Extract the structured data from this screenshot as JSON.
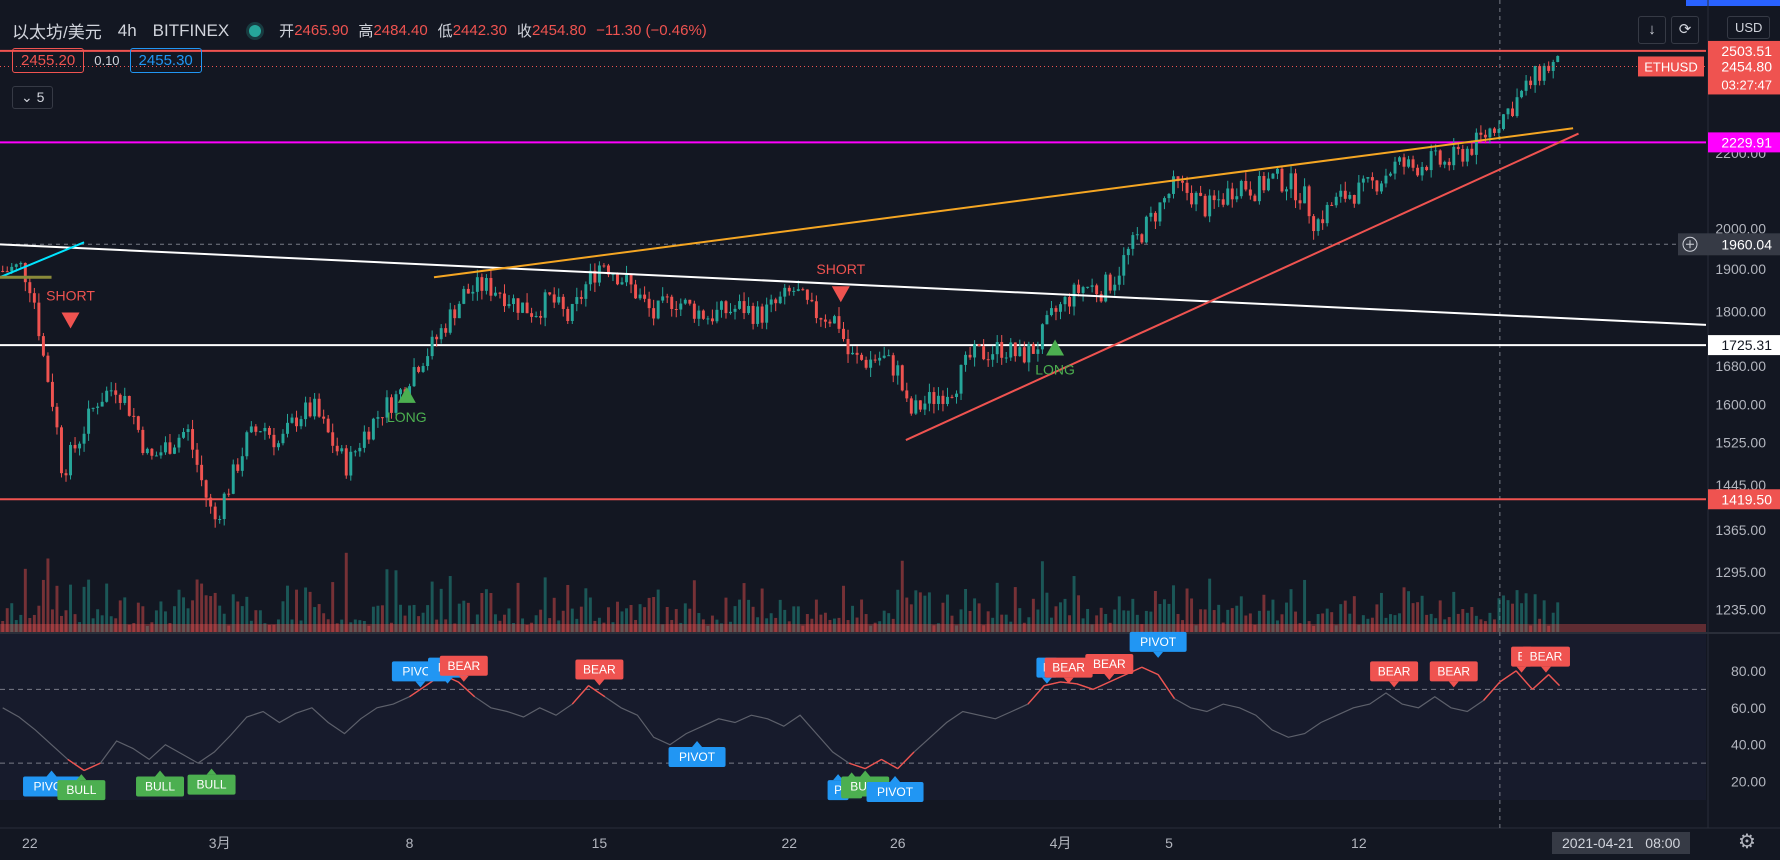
{
  "header": {
    "symbol": "以太坊/美元",
    "timeframe": "4h",
    "exchange": "BITFINEX",
    "open_label": "开",
    "open": "2465.90",
    "high_label": "高",
    "high": "2484.40",
    "low_label": "低",
    "low": "2442.30",
    "close_label": "收",
    "close": "2454.80",
    "change": "−11.30 (−0.46%)",
    "bid": "2455.20",
    "spread": "0.10",
    "ask": "2455.30",
    "indicators_collapsed": "5"
  },
  "toolbar": {
    "currency": "USD",
    "download_icon": "download-icon",
    "fullscreen_icon": "fullscreen-icon",
    "settings_icon": "gear-icon"
  },
  "crosshair": {
    "date": "2021-04-21",
    "time": "08:00",
    "price": "1960.04"
  },
  "colors": {
    "bg": "#131722",
    "up": "#26a69a",
    "down": "#ef5350",
    "magenta": "#ff00ff",
    "orange": "#f5a623",
    "blue": "#2196f3",
    "bull": "#4caf50"
  },
  "chart_data": {
    "type": "candlestick",
    "symbol": "ETHUSD",
    "interval": "4h",
    "yaxis_log": true,
    "ylim": [
      1200,
      2650
    ],
    "yticks": [
      1235,
      1295,
      1365,
      1445,
      1525,
      1600,
      1680,
      1800,
      1900,
      2000,
      2200
    ],
    "ytick_labels": [
      "1235.00",
      "1295.00",
      "1365.00",
      "1445.00",
      "1525.00",
      "1600.00",
      "1680.00",
      "1800.00",
      "1900.00",
      "2000.00",
      "2200.00"
    ],
    "xaxis_ticks": [
      "22",
      "3月",
      "8",
      "15",
      "22",
      "26",
      "4月",
      "5",
      "12"
    ],
    "xaxis_tick_days": [
      -7,
      0,
      7,
      14,
      21,
      25,
      31,
      35,
      42
    ],
    "xlim_days": [
      -8.1,
      54.8
    ],
    "close_points": [
      [
        -8.0,
        1895
      ],
      [
        -7.3,
        1905
      ],
      [
        -6.9,
        1850
      ],
      [
        -6.5,
        1700
      ],
      [
        -6.1,
        1590
      ],
      [
        -5.8,
        1470
      ],
      [
        -5.2,
        1530
      ],
      [
        -4.5,
        1610
      ],
      [
        -3.8,
        1640
      ],
      [
        -3.2,
        1580
      ],
      [
        -2.6,
        1490
      ],
      [
        -1.9,
        1520
      ],
      [
        -1.2,
        1550
      ],
      [
        -0.6,
        1440
      ],
      [
        -0.2,
        1380
      ],
      [
        0.4,
        1450
      ],
      [
        1.0,
        1530
      ],
      [
        1.6,
        1560
      ],
      [
        2.2,
        1520
      ],
      [
        2.9,
        1580
      ],
      [
        3.5,
        1590
      ],
      [
        4.1,
        1530
      ],
      [
        4.7,
        1480
      ],
      [
        5.3,
        1540
      ],
      [
        6.0,
        1590
      ],
      [
        6.6,
        1620
      ],
      [
        7.2,
        1680
      ],
      [
        7.8,
        1720
      ],
      [
        8.4,
        1780
      ],
      [
        9.0,
        1840
      ],
      [
        9.7,
        1860
      ],
      [
        10.3,
        1850
      ],
      [
        10.9,
        1820
      ],
      [
        11.6,
        1800
      ],
      [
        12.2,
        1830
      ],
      [
        12.9,
        1780
      ],
      [
        13.5,
        1860
      ],
      [
        14.1,
        1920
      ],
      [
        14.8,
        1880
      ],
      [
        15.4,
        1840
      ],
      [
        16.0,
        1790
      ],
      [
        16.7,
        1830
      ],
      [
        17.3,
        1810
      ],
      [
        18.0,
        1790
      ],
      [
        18.6,
        1800
      ],
      [
        19.3,
        1810
      ],
      [
        19.9,
        1790
      ],
      [
        20.6,
        1820
      ],
      [
        21.2,
        1850
      ],
      [
        21.8,
        1800
      ],
      [
        22.4,
        1790
      ],
      [
        22.8,
        1780
      ],
      [
        23.2,
        1700
      ],
      [
        23.8,
        1690
      ],
      [
        24.4,
        1700
      ],
      [
        25.0,
        1670
      ],
      [
        25.4,
        1580
      ],
      [
        25.9,
        1600
      ],
      [
        26.5,
        1620
      ],
      [
        27.1,
        1640
      ],
      [
        27.7,
        1700
      ],
      [
        28.3,
        1710
      ],
      [
        28.9,
        1720
      ],
      [
        29.5,
        1700
      ],
      [
        30.1,
        1720
      ],
      [
        30.7,
        1790
      ],
      [
        31.3,
        1830
      ],
      [
        31.9,
        1860
      ],
      [
        32.5,
        1850
      ],
      [
        33.0,
        1880
      ],
      [
        33.4,
        1930
      ],
      [
        34.0,
        1990
      ],
      [
        34.6,
        2050
      ],
      [
        35.2,
        2110
      ],
      [
        35.8,
        2090
      ],
      [
        36.4,
        2050
      ],
      [
        37.0,
        2080
      ],
      [
        37.6,
        2120
      ],
      [
        38.2,
        2100
      ],
      [
        38.8,
        2130
      ],
      [
        39.4,
        2120
      ],
      [
        40.0,
        2080
      ],
      [
        40.4,
        2010
      ],
      [
        41.0,
        2060
      ],
      [
        41.6,
        2090
      ],
      [
        42.2,
        2100
      ],
      [
        42.8,
        2130
      ],
      [
        43.4,
        2170
      ],
      [
        44.0,
        2160
      ],
      [
        44.6,
        2180
      ],
      [
        45.2,
        2170
      ],
      [
        45.8,
        2200
      ],
      [
        46.4,
        2230
      ],
      [
        47.0,
        2280
      ],
      [
        47.6,
        2330
      ],
      [
        48.2,
        2390
      ],
      [
        48.7,
        2440
      ],
      [
        49.1,
        2460
      ],
      [
        49.4,
        2455
      ]
    ],
    "volume_note": "volume histogram bars at bottom of price pane",
    "horizontal_lines": [
      {
        "price": 2503.51,
        "color": "#ef5350",
        "label": "2503.51"
      },
      {
        "price": 2229.91,
        "color": "#ff00ff",
        "label": "2229.91"
      },
      {
        "price": 1725.31,
        "color": "#ffffff",
        "label": "1725.31"
      },
      {
        "price": 1419.5,
        "color": "#ef5350",
        "label": "1419.50"
      }
    ],
    "trend_lines": [
      {
        "color": "#ffffff",
        "from": [
          -8.1,
          1960
        ],
        "to": [
          54.8,
          1770
        ]
      },
      {
        "color": "#f5a623",
        "from": [
          7.9,
          1880
        ],
        "to": [
          49.9,
          2270
        ]
      },
      {
        "color": "#ef5350",
        "from": [
          25.3,
          1530
        ],
        "to": [
          50.1,
          2255
        ]
      },
      {
        "color": "#00e5ff",
        "from": [
          -8.1,
          1880
        ],
        "to": [
          -5.0,
          1965
        ]
      }
    ],
    "last_price": {
      "label": "ETHUSD",
      "value": "2454.80",
      "countdown": "03:27:47"
    },
    "signals": [
      {
        "type": "SHORT",
        "day": -5.5,
        "price": 1780
      },
      {
        "type": "LONG",
        "day": 6.9,
        "price": 1620
      },
      {
        "type": "SHORT",
        "day": 22.9,
        "price": 1840
      },
      {
        "type": "LONG",
        "day": 30.8,
        "price": 1720
      }
    ],
    "oscillator": {
      "ylim": [
        10,
        100
      ],
      "yticks": [
        20,
        40,
        60,
        80
      ],
      "ytick_labels": [
        "20.00",
        "40.00",
        "60.00",
        "80.00"
      ],
      "levels": [
        70,
        30
      ],
      "values": [
        [
          -8.0,
          60
        ],
        [
          -7.4,
          55
        ],
        [
          -6.8,
          48
        ],
        [
          -6.2,
          40
        ],
        [
          -5.6,
          32
        ],
        [
          -5.0,
          26
        ],
        [
          -4.4,
          30
        ],
        [
          -3.8,
          42
        ],
        [
          -3.2,
          38
        ],
        [
          -2.6,
          32
        ],
        [
          -2.0,
          40
        ],
        [
          -1.4,
          35
        ],
        [
          -0.8,
          30
        ],
        [
          -0.2,
          36
        ],
        [
          0.4,
          45
        ],
        [
          1.0,
          55
        ],
        [
          1.6,
          58
        ],
        [
          2.2,
          52
        ],
        [
          2.8,
          57
        ],
        [
          3.4,
          60
        ],
        [
          4.0,
          52
        ],
        [
          4.6,
          46
        ],
        [
          5.2,
          54
        ],
        [
          5.8,
          60
        ],
        [
          6.4,
          62
        ],
        [
          7.0,
          66
        ],
        [
          7.6,
          72
        ],
        [
          8.2,
          78
        ],
        [
          8.8,
          74
        ],
        [
          9.4,
          66
        ],
        [
          10.0,
          60
        ],
        [
          10.6,
          58
        ],
        [
          11.2,
          55
        ],
        [
          11.8,
          60
        ],
        [
          12.4,
          56
        ],
        [
          13.0,
          62
        ],
        [
          13.6,
          72
        ],
        [
          14.2,
          66
        ],
        [
          14.8,
          60
        ],
        [
          15.4,
          56
        ],
        [
          16.0,
          44
        ],
        [
          16.6,
          40
        ],
        [
          17.2,
          46
        ],
        [
          17.8,
          50
        ],
        [
          18.4,
          54
        ],
        [
          19.0,
          52
        ],
        [
          19.6,
          56
        ],
        [
          20.2,
          54
        ],
        [
          20.8,
          50
        ],
        [
          21.4,
          56
        ],
        [
          22.0,
          46
        ],
        [
          22.6,
          36
        ],
        [
          23.2,
          30
        ],
        [
          23.8,
          27
        ],
        [
          24.4,
          32
        ],
        [
          25.0,
          27
        ],
        [
          25.6,
          36
        ],
        [
          26.2,
          44
        ],
        [
          26.8,
          52
        ],
        [
          27.4,
          58
        ],
        [
          28.0,
          56
        ],
        [
          28.6,
          54
        ],
        [
          29.2,
          58
        ],
        [
          29.8,
          62
        ],
        [
          30.4,
          72
        ],
        [
          31.0,
          74
        ],
        [
          31.6,
          73
        ],
        [
          32.2,
          70
        ],
        [
          32.8,
          74
        ],
        [
          33.4,
          78
        ],
        [
          34.0,
          82
        ],
        [
          34.6,
          78
        ],
        [
          35.2,
          65
        ],
        [
          35.8,
          60
        ],
        [
          36.4,
          58
        ],
        [
          37.0,
          62
        ],
        [
          37.6,
          60
        ],
        [
          38.2,
          56
        ],
        [
          38.8,
          48
        ],
        [
          39.4,
          44
        ],
        [
          40.0,
          46
        ],
        [
          40.6,
          52
        ],
        [
          41.2,
          56
        ],
        [
          41.8,
          60
        ],
        [
          42.4,
          62
        ],
        [
          43.0,
          68
        ],
        [
          43.6,
          62
        ],
        [
          44.2,
          60
        ],
        [
          44.8,
          66
        ],
        [
          45.4,
          60
        ],
        [
          46.0,
          58
        ],
        [
          46.6,
          64
        ],
        [
          47.2,
          74
        ],
        [
          47.8,
          80
        ],
        [
          48.4,
          70
        ],
        [
          49.0,
          78
        ],
        [
          49.4,
          72
        ]
      ],
      "badges": [
        {
          "text": "PIVOT",
          "day": -6.2,
          "value": 26,
          "color": "#2196f3",
          "dir": "up"
        },
        {
          "text": "BULL",
          "day": -5.1,
          "value": 24,
          "color": "#4caf50",
          "dir": "up"
        },
        {
          "text": "BULL",
          "day": -2.2,
          "value": 26,
          "color": "#4caf50",
          "dir": "up"
        },
        {
          "text": "BULL",
          "day": -0.3,
          "value": 27,
          "color": "#4caf50",
          "dir": "up"
        },
        {
          "text": "PIVOT",
          "day": 7.4,
          "value": 70,
          "color": "#2196f3",
          "dir": "down"
        },
        {
          "text": "PIV",
          "day": 8.4,
          "value": 72,
          "color": "#2196f3",
          "dir": "down"
        },
        {
          "text": "BEAR",
          "day": 9.0,
          "value": 73,
          "color": "#ef5350",
          "dir": "down"
        },
        {
          "text": "BEAR",
          "day": 14.0,
          "value": 71,
          "color": "#ef5350",
          "dir": "down"
        },
        {
          "text": "PIVOT",
          "day": 17.6,
          "value": 42,
          "color": "#2196f3",
          "dir": "up"
        },
        {
          "text": "P",
          "day": 22.8,
          "value": 24,
          "color": "#2196f3",
          "dir": "up"
        },
        {
          "text": "B",
          "day": 23.3,
          "value": 25,
          "color": "#4caf50",
          "dir": "up"
        },
        {
          "text": "BULL",
          "day": 23.8,
          "value": 26,
          "color": "#4caf50",
          "dir": "up"
        },
        {
          "text": "PIVOT",
          "day": 24.9,
          "value": 23,
          "color": "#2196f3",
          "dir": "up"
        },
        {
          "text": "P",
          "day": 30.5,
          "value": 72,
          "color": "#2196f3",
          "dir": "down"
        },
        {
          "text": "BEAR",
          "day": 31.3,
          "value": 72,
          "color": "#ef5350",
          "dir": "down"
        },
        {
          "text": "BEAR",
          "day": 32.8,
          "value": 74,
          "color": "#ef5350",
          "dir": "down"
        },
        {
          "text": "PIVOT",
          "day": 34.6,
          "value": 86,
          "color": "#2196f3",
          "dir": "down"
        },
        {
          "text": "BEAR",
          "day": 43.3,
          "value": 70,
          "color": "#ef5350",
          "dir": "down"
        },
        {
          "text": "BEAR",
          "day": 45.5,
          "value": 70,
          "color": "#ef5350",
          "dir": "down"
        },
        {
          "text": "B",
          "day": 48.0,
          "value": 78,
          "color": "#ef5350",
          "dir": "down"
        },
        {
          "text": "BEAR",
          "day": 48.9,
          "value": 78,
          "color": "#ef5350",
          "dir": "down"
        }
      ]
    }
  }
}
